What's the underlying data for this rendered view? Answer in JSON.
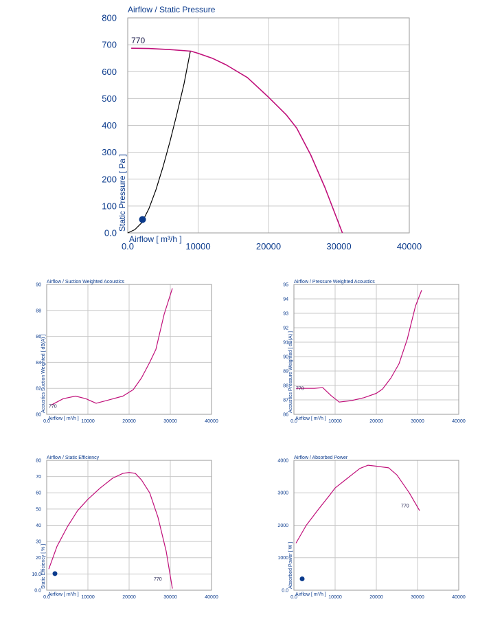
{
  "colors": {
    "label": "#0a3a8c",
    "curve": "#c0107a",
    "system": "#000000",
    "grid": "#c8c8c8",
    "frame": "#9a9a9a",
    "point": "#0a3a8c"
  },
  "chart_data": [
    {
      "id": "main",
      "type": "line",
      "title": "Airflow / Static Pressure",
      "xlabel": "Airflow [ m³/h ]",
      "ylabel": "Static Pressure [ Pa ]",
      "xlim": [
        0,
        40000
      ],
      "ylim": [
        0,
        800
      ],
      "xticks": [
        0,
        10000,
        20000,
        30000,
        40000
      ],
      "xtick_labels": [
        "0.0",
        "10000",
        "20000",
        "30000",
        "40000"
      ],
      "yticks": [
        0,
        100,
        200,
        300,
        400,
        500,
        600,
        700,
        800
      ],
      "ytick_labels": [
        "0.0",
        "100",
        "200",
        "300",
        "400",
        "500",
        "600",
        "700",
        "800"
      ],
      "grid": true,
      "series": [
        {
          "name": "770",
          "label_at": [
            500,
            705
          ],
          "x": [
            500,
            3000,
            6000,
            9000,
            10000,
            12000,
            14000,
            17000,
            20000,
            22500,
            24000,
            26000,
            28000,
            30500
          ],
          "y": [
            687,
            686,
            682,
            676,
            668,
            650,
            625,
            578,
            505,
            440,
            390,
            290,
            170,
            0
          ]
        }
      ],
      "system_curve": {
        "x": [
          0,
          1000,
          2000,
          3000,
          4000,
          5000,
          6000,
          7000,
          8000,
          8900
        ],
        "y": [
          0,
          12,
          38,
          90,
          160,
          245,
          340,
          445,
          555,
          676
        ]
      },
      "operating_point": {
        "x": 2100,
        "y": 50
      }
    },
    {
      "id": "suction",
      "type": "line",
      "title": "Airflow / Suction Weighted Acoustics",
      "xlabel": "Airflow [ m³/h ]",
      "ylabel": "Acoustics Suction Weighted [ dB(A) ]",
      "xlim": [
        0,
        40000
      ],
      "ylim": [
        80,
        90
      ],
      "xticks": [
        0,
        10000,
        20000,
        30000,
        40000
      ],
      "xtick_labels": [
        "0.0",
        "10000",
        "20000",
        "30000",
        "40000"
      ],
      "yticks": [
        80,
        82,
        84,
        86,
        88,
        90
      ],
      "ytick_labels": [
        "80",
        "82",
        "84",
        "86",
        "88",
        "90"
      ],
      "grid": true,
      "series": [
        {
          "name": "770",
          "label_at": [
            500,
            80.5
          ],
          "x": [
            1000,
            4000,
            7000,
            9500,
            12000,
            15000,
            18500,
            21000,
            23000,
            25000,
            26500,
            28500,
            30500
          ],
          "y": [
            80.7,
            81.2,
            81.4,
            81.2,
            80.85,
            81.1,
            81.4,
            81.9,
            82.8,
            84.0,
            85.0,
            87.7,
            89.7
          ]
        }
      ]
    },
    {
      "id": "pressure-acoustics",
      "type": "line",
      "title": "Airflow / Pressure Weighted Acoustics",
      "xlabel": "Airflow [ m³/h ]",
      "ylabel": "Acoustics Pressure Weighted [ dB(A) ]",
      "xlim": [
        0,
        40000
      ],
      "ylim": [
        86,
        95
      ],
      "xticks": [
        0,
        10000,
        20000,
        30000,
        40000
      ],
      "xtick_labels": [
        "0.0",
        "10000",
        "20000",
        "30000",
        "40000"
      ],
      "yticks": [
        86,
        87,
        88,
        89,
        90,
        91,
        92,
        93,
        94,
        95
      ],
      "ytick_labels": [
        "86",
        "87",
        "88",
        "89",
        "90",
        "91",
        "92",
        "93",
        "94",
        "95"
      ],
      "grid": true,
      "series": [
        {
          "name": "770",
          "label_at": [
            500,
            87.7
          ],
          "x": [
            500,
            3000,
            5000,
            7000,
            9000,
            11000,
            14000,
            17000,
            20000,
            21500,
            23500,
            25500,
            27500,
            29500,
            31000
          ],
          "y": [
            87.8,
            87.8,
            87.8,
            87.85,
            87.3,
            86.85,
            86.95,
            87.15,
            87.45,
            87.75,
            88.5,
            89.5,
            91.2,
            93.5,
            94.6
          ]
        }
      ]
    },
    {
      "id": "efficiency",
      "type": "line",
      "title": "Airflow / Static Efficiency",
      "xlabel": "Airflow [ m³/h ]",
      "ylabel": "Static Efficiency [ % ]",
      "xlim": [
        0,
        40000
      ],
      "ylim": [
        0,
        80
      ],
      "xticks": [
        0,
        10000,
        20000,
        30000,
        40000
      ],
      "xtick_labels": [
        "0.0",
        "10000",
        "20000",
        "30000",
        "40000"
      ],
      "yticks": [
        0,
        10,
        20,
        30,
        40,
        50,
        60,
        70,
        80
      ],
      "ytick_labels": [
        "0.0",
        "10.0",
        "20",
        "30",
        "40",
        "50",
        "60",
        "70",
        "80"
      ],
      "grid": true,
      "series": [
        {
          "name": "770",
          "label_at": [
            26000,
            6
          ],
          "x": [
            500,
            2500,
            5000,
            7500,
            10000,
            13000,
            16000,
            18500,
            20000,
            21500,
            23000,
            25000,
            27000,
            29000,
            30500
          ],
          "y": [
            13,
            27,
            39,
            49,
            56,
            63,
            69,
            72,
            72.5,
            72,
            68,
            60,
            45,
            24,
            1
          ]
        }
      ],
      "operating_point": {
        "x": 2000,
        "y": 10.2
      }
    },
    {
      "id": "power",
      "type": "line",
      "title": "Airflow / Absorbed Power",
      "xlabel": "Airflow [ m³/h ]",
      "ylabel": "Absorbed Power [ W ]",
      "xlim": [
        0,
        40000
      ],
      "ylim": [
        0,
        4000
      ],
      "xticks": [
        0,
        10000,
        20000,
        30000,
        40000
      ],
      "xtick_labels": [
        "0.0",
        "10000",
        "20000",
        "30000",
        "40000"
      ],
      "yticks": [
        0,
        1000,
        2000,
        3000,
        4000
      ],
      "ytick_labels": [
        "0.0",
        "1000",
        "2000",
        "3000",
        "4000"
      ],
      "grid": true,
      "series": [
        {
          "name": "770",
          "label_at": [
            26000,
            2550
          ],
          "x": [
            500,
            3000,
            6000,
            8500,
            10000,
            13000,
            16000,
            18000,
            20000,
            23000,
            25000,
            28000,
            30500
          ],
          "y": [
            1450,
            2000,
            2500,
            2900,
            3150,
            3450,
            3750,
            3850,
            3820,
            3770,
            3550,
            3000,
            2450
          ]
        }
      ],
      "operating_point": {
        "x": 2000,
        "y": 350
      }
    }
  ]
}
